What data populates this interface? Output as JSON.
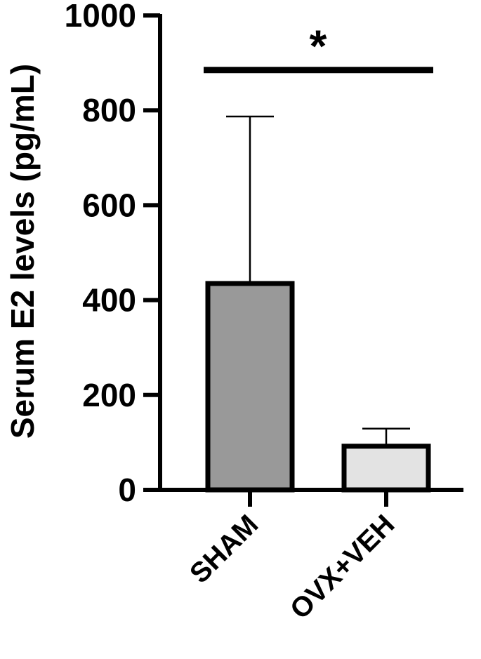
{
  "chart_data": {
    "type": "bar",
    "categories": [
      "SHAM",
      "OVX+VEH"
    ],
    "values": [
      435,
      92
    ],
    "errors": [
      352,
      37
    ],
    "ylabel": "Serum E2 levels (pg/mL)",
    "xlabel": "",
    "ylim": [
      0,
      1000
    ],
    "yticks": [
      0,
      200,
      400,
      600,
      800,
      1000
    ],
    "ytick_labels": [
      "0",
      "200",
      "400",
      "600",
      "800",
      "1000"
    ],
    "bar_colors": [
      "#999999",
      "#e3e3e3"
    ],
    "significance": {
      "label": "*",
      "y": 885
    },
    "grid": false,
    "legend": "none"
  }
}
